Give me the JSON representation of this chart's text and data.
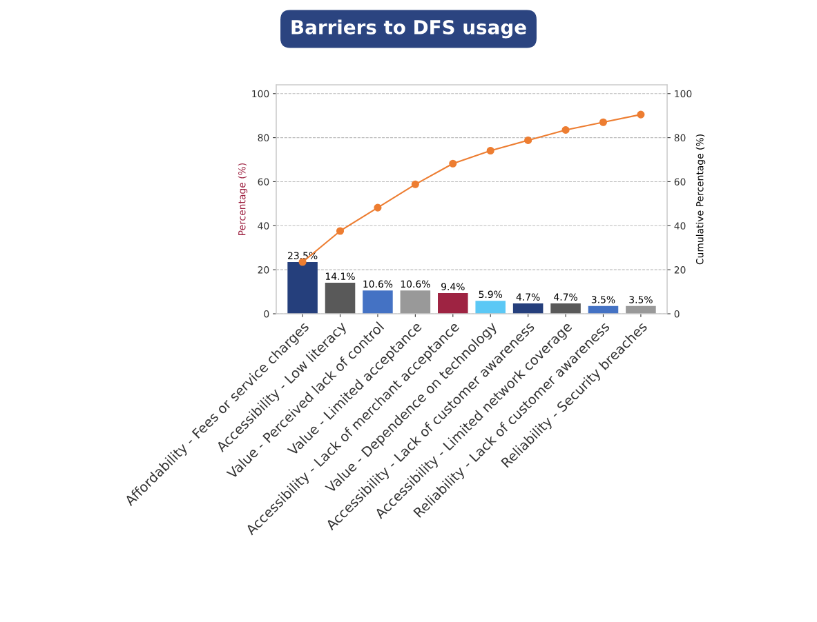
{
  "chart_data": {
    "type": "bar",
    "title": "Barriers to DFS usage",
    "ylabel": "Percentage (%)",
    "y2label": "Cumulative Percentage (%)",
    "categories": [
      "Affordability - Fees or service charges",
      "Accessibility - Low literacy",
      "Value - Perceived lack of control",
      "Value - Limited acceptance",
      "Accessibility - Lack of merchant acceptance",
      "Value - Dependence on technology",
      "Accessibility - Lack of customer awareness",
      "Accessibility - Limited network coverage",
      "Reliability - Lack of customer awareness",
      "Reliability - Security breaches"
    ],
    "series": [
      {
        "colors": [
          "#253f7c",
          "#595959",
          "#4472c4",
          "#999999",
          "#9e2342",
          "#5bc8f5",
          "#253f7c",
          "#595959",
          "#4472c4",
          "#999999"
        ],
        "values": [
          23.5,
          14.1,
          10.6,
          10.6,
          9.4,
          5.9,
          4.7,
          4.7,
          3.5,
          3.5
        ],
        "value_labels": [
          "23.5%",
          "14.1%",
          "10.6%",
          "10.6%",
          "9.4%",
          "5.9%",
          "4.7%",
          "4.7%",
          "3.5%",
          "3.5%"
        ]
      },
      {
        "type": "line",
        "axis": "y2",
        "color": "#ed7d31",
        "marker": "circle",
        "values": [
          23.5,
          37.6,
          48.2,
          58.8,
          68.2,
          74.1,
          78.8,
          83.5,
          87.0,
          90.5
        ]
      }
    ],
    "ylim": [
      0,
      104
    ],
    "yticks": [
      0,
      20,
      40,
      60,
      80,
      100
    ],
    "y2lim": [
      0,
      104
    ],
    "y2ticks": [
      0,
      20,
      40,
      60,
      80,
      100
    ],
    "grid": "y"
  }
}
